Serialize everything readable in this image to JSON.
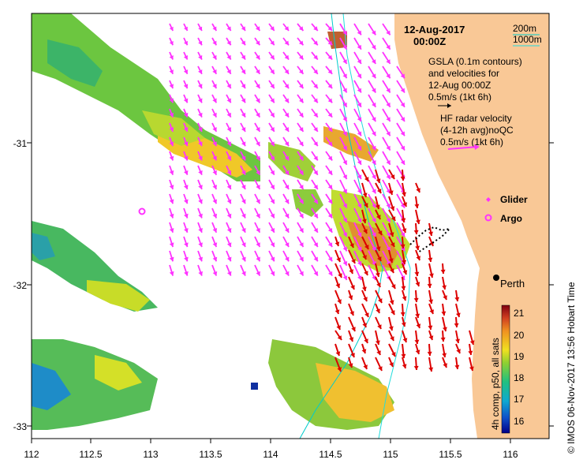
{
  "title": {
    "date": "12-Aug-2017",
    "time": "00:00Z"
  },
  "depth_legend": {
    "contour_200": "200m",
    "contour_1000": "1000m"
  },
  "gsla_legend": {
    "line1": "GSLA (0.1m contours)",
    "line2": "and velocities for",
    "line3": "12-Aug 00:00Z",
    "line4": "0.5m/s (1kt 6h)"
  },
  "hf_legend": {
    "line1": "HF radar velocity",
    "line2": "(4-12h avg)noQC",
    "line3": "0.5m/s (1kt 6h)"
  },
  "platforms": {
    "glider_label": "Glider",
    "argo_label": "Argo"
  },
  "city": {
    "label": "Perth"
  },
  "colorbar": {
    "label": "4h comp, p50, all sats",
    "ticks": [
      "21",
      "20",
      "19",
      "18",
      "17",
      "16"
    ]
  },
  "credit": {
    "text": "© IMOS 06-Nov-2017 13:56 Hobart Time"
  },
  "axes": {
    "x_ticks": [
      "112",
      "112.5",
      "113",
      "113.5",
      "114",
      "114.5",
      "115",
      "115.5",
      "116"
    ],
    "y_ticks": [
      "-31",
      "-32",
      "-33"
    ]
  },
  "colors": {
    "land": "#f9c896",
    "altimetry_arrow": "#ff33ff",
    "hf_arrow": "#dd0000",
    "contour_200": "#00cccc",
    "contour_1000": "#22dddd",
    "frame": "#000000"
  }
}
